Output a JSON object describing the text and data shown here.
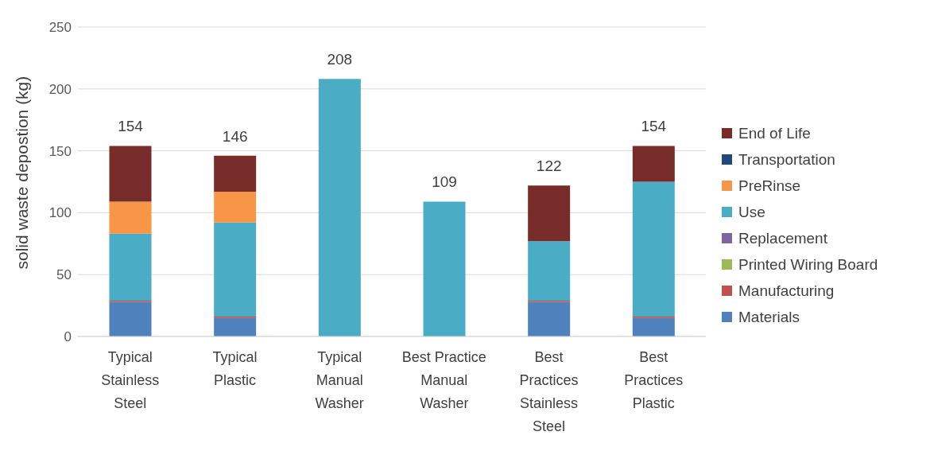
{
  "chart_data": {
    "type": "bar",
    "stacked": true,
    "ylabel": "solid waste depostion  (kg)",
    "categories": [
      "Typical Stainless Steel",
      "Typical Plastic",
      "Typical Manual Washer",
      "Best Practice Manual Washer",
      "Best Practices Stainless Steel",
      "Best Practices Plastic"
    ],
    "series": [
      {
        "name": "Materials",
        "color": "#4f81bd",
        "values": [
          28,
          15,
          0,
          0,
          28,
          15
        ]
      },
      {
        "name": "Manufacturing",
        "color": "#c0504d",
        "values": [
          1,
          1,
          0,
          0,
          1,
          1
        ]
      },
      {
        "name": "Printed Wiring Board",
        "color": "#9bbb59",
        "values": [
          0,
          0,
          0,
          0,
          0,
          0
        ]
      },
      {
        "name": "Replacement",
        "color": "#8064a2",
        "values": [
          0,
          0,
          0,
          0,
          0,
          0
        ]
      },
      {
        "name": "Use",
        "color": "#4bacc6",
        "values": [
          54,
          76,
          208,
          109,
          48,
          109
        ]
      },
      {
        "name": "PreRinse",
        "color": "#f79646",
        "values": [
          26,
          25,
          0,
          0,
          0,
          0
        ]
      },
      {
        "name": "Transportation",
        "color": "#1f497d",
        "values": [
          0,
          0,
          0,
          0,
          0,
          0
        ]
      },
      {
        "name": "End of Life",
        "color": "#772c2a",
        "values": [
          45,
          29,
          0,
          0,
          45,
          29
        ]
      }
    ],
    "totals": [
      "154",
      "146",
      "208",
      "109",
      "122",
      "154"
    ],
    "ylim": [
      0,
      250
    ],
    "yticks": [
      0,
      50,
      100,
      150,
      200,
      250
    ],
    "grid": "y",
    "legend": "right"
  }
}
